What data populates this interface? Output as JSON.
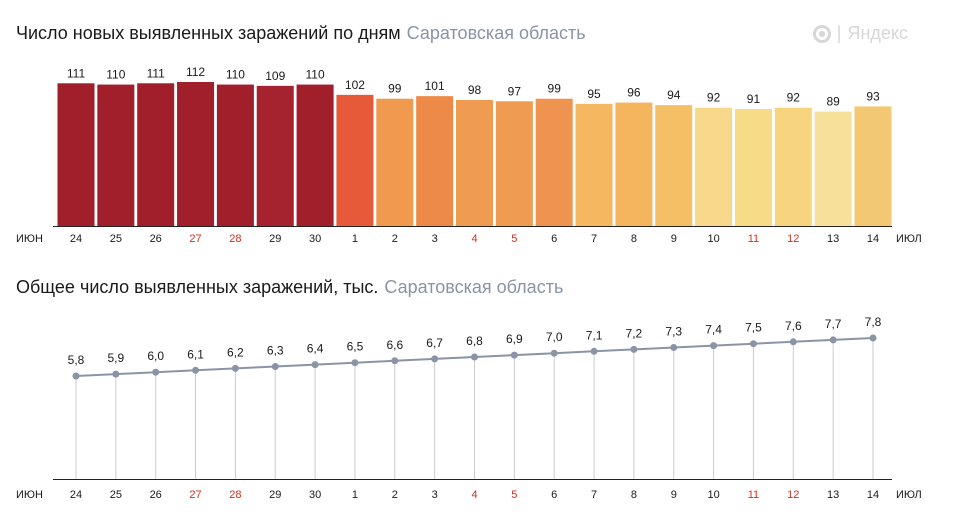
{
  "logo": {
    "text": "Яндекс",
    "icon": "yandex-logo-icon"
  },
  "colors": {
    "weekend": "#d62e1f",
    "label": "#1a1a1a",
    "line": "#8a94a6",
    "point": "#8a94a6",
    "axis": "#222222"
  },
  "chart_data": [
    {
      "type": "bar",
      "title": "Число новых выявленных заражений по дням",
      "subtitle": "Саратовская область",
      "month_start": "июн",
      "month_end": "июл",
      "categories": [
        "24",
        "25",
        "26",
        "27",
        "28",
        "29",
        "30",
        "1",
        "2",
        "3",
        "4",
        "5",
        "6",
        "7",
        "8",
        "9",
        "10",
        "11",
        "12",
        "13",
        "14"
      ],
      "weekend_flags": [
        false,
        false,
        false,
        true,
        true,
        false,
        false,
        false,
        false,
        false,
        true,
        true,
        false,
        false,
        false,
        false,
        false,
        true,
        true,
        false,
        false
      ],
      "values": [
        111,
        110,
        111,
        112,
        110,
        109,
        110,
        102,
        99,
        101,
        98,
        97,
        99,
        95,
        96,
        94,
        92,
        91,
        92,
        89,
        93
      ],
      "value_labels": [
        "111",
        "110",
        "111",
        "112",
        "110",
        "109",
        "110",
        "102",
        "99",
        "101",
        "98",
        "97",
        "99",
        "95",
        "96",
        "94",
        "92",
        "91",
        "92",
        "89",
        "93"
      ],
      "bar_colors": [
        "#a01f2b",
        "#a01f2b",
        "#a01f2b",
        "#a01f2b",
        "#a01f2b",
        "#a5232e",
        "#a01f2b",
        "#e65a3a",
        "#ef9a4e",
        "#ee8a47",
        "#f09b52",
        "#f09b52",
        "#ef9350",
        "#f5b860",
        "#f5b45e",
        "#f5bf66",
        "#f8d88a",
        "#f8db86",
        "#f7d57e",
        "#f7e09a",
        "#f3c873"
      ]
    },
    {
      "type": "line",
      "title": "Общее число выявленных заражений, тыс.",
      "subtitle": "Саратовская область",
      "month_start": "июн",
      "month_end": "июл",
      "categories": [
        "24",
        "25",
        "26",
        "27",
        "28",
        "29",
        "30",
        "1",
        "2",
        "3",
        "4",
        "5",
        "6",
        "7",
        "8",
        "9",
        "10",
        "11",
        "12",
        "13",
        "14"
      ],
      "weekend_flags": [
        false,
        false,
        false,
        true,
        true,
        false,
        false,
        false,
        false,
        false,
        true,
        true,
        false,
        false,
        false,
        false,
        false,
        true,
        true,
        false,
        false
      ],
      "values": [
        5.8,
        5.9,
        6.0,
        6.1,
        6.2,
        6.3,
        6.4,
        6.5,
        6.6,
        6.7,
        6.8,
        6.9,
        7.0,
        7.1,
        7.2,
        7.3,
        7.4,
        7.5,
        7.6,
        7.7,
        7.8
      ],
      "value_labels": [
        "5,8",
        "5,9",
        "6,0",
        "6,1",
        "6,2",
        "6,3",
        "6,4",
        "6,5",
        "6,6",
        "6,7",
        "6,8",
        "6,9",
        "7,0",
        "7,1",
        "7,2",
        "7,3",
        "7,4",
        "7,5",
        "7,6",
        "7,7",
        "7,8"
      ]
    }
  ]
}
